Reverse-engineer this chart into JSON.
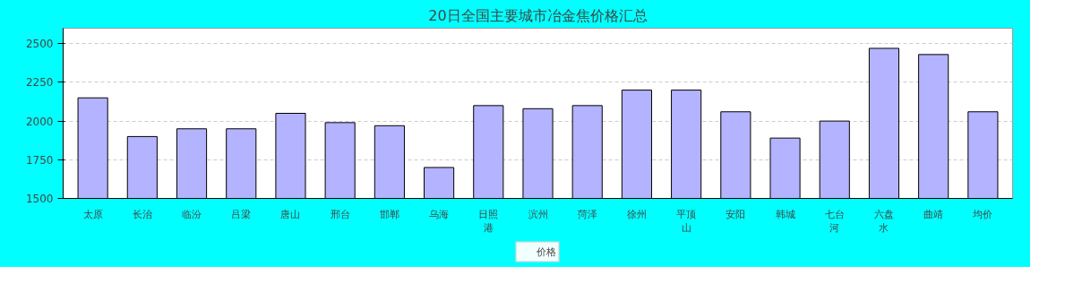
{
  "chart_data": {
    "type": "bar",
    "title": "20日全国主要城市冶金焦价格汇总",
    "categories": [
      "太原",
      "长治",
      "临汾",
      "吕梁",
      "唐山",
      "邢台",
      "邯郸",
      "乌海",
      "日照港",
      "滨州",
      "菏泽",
      "徐州",
      "平顶山",
      "安阳",
      "韩城",
      "七台河",
      "六盘水",
      "曲靖",
      "均价"
    ],
    "series": [
      {
        "name": "价格",
        "color": "#b3b3ff",
        "values": [
          2150,
          1900,
          1950,
          1950,
          2050,
          1990,
          1970,
          1700,
          2100,
          2080,
          2100,
          2200,
          2200,
          2060,
          1890,
          2000,
          2470,
          2430,
          2060
        ]
      }
    ],
    "ylim": [
      1500,
      2600
    ],
    "yticks": [
      1500,
      1750,
      2000,
      2250,
      2500
    ],
    "grid": "y",
    "legend": "bottom"
  }
}
